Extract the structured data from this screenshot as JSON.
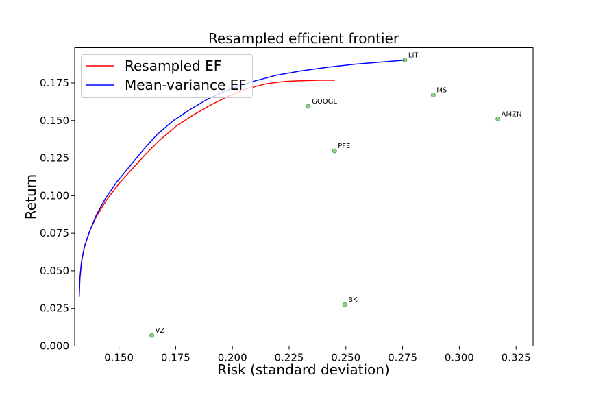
{
  "chart_data": {
    "type": "scatter",
    "title": "Resampled efficient frontier",
    "xlabel": "Risk (standard deviation)",
    "ylabel": "Return",
    "xlim": [
      0.1305,
      0.3325
    ],
    "ylim": [
      0.0,
      0.1985
    ],
    "x_ticks": [
      0.15,
      0.175,
      0.2,
      0.225,
      0.25,
      0.275,
      0.3,
      0.325
    ],
    "x_tick_labels": [
      "0.150",
      "0.175",
      "0.200",
      "0.225",
      "0.250",
      "0.275",
      "0.300",
      "0.325"
    ],
    "y_ticks": [
      0.0,
      0.025,
      0.05,
      0.075,
      0.1,
      0.125,
      0.15,
      0.175
    ],
    "y_tick_labels": [
      "0.000",
      "0.025",
      "0.050",
      "0.075",
      "0.100",
      "0.125",
      "0.150",
      "0.175"
    ],
    "grid": false,
    "legend_position": "top-left",
    "series": [
      {
        "name": "Resampled EF",
        "color": "#ff0000",
        "x": [
          0.1325,
          0.1328,
          0.1335,
          0.1348,
          0.137,
          0.14,
          0.1445,
          0.15,
          0.156,
          0.162,
          0.168,
          0.175,
          0.182,
          0.19,
          0.198,
          0.206,
          0.215,
          0.223,
          0.23,
          0.238,
          0.245
        ],
        "y": [
          0.033,
          0.045,
          0.056,
          0.066,
          0.076,
          0.086,
          0.097,
          0.108,
          0.118,
          0.128,
          0.137,
          0.146,
          0.153,
          0.16,
          0.166,
          0.171,
          0.1745,
          0.176,
          0.1765,
          0.1768,
          0.1768
        ]
      },
      {
        "name": "Mean-variance EF",
        "color": "#0000ff",
        "x": [
          0.1325,
          0.1328,
          0.1335,
          0.1348,
          0.137,
          0.14,
          0.144,
          0.149,
          0.155,
          0.161,
          0.167,
          0.174,
          0.182,
          0.19,
          0.199,
          0.209,
          0.219,
          0.23,
          0.242,
          0.254,
          0.266,
          0.276
        ],
        "y": [
          0.033,
          0.045,
          0.056,
          0.066,
          0.076,
          0.087,
          0.098,
          0.109,
          0.12,
          0.131,
          0.141,
          0.15,
          0.158,
          0.165,
          0.171,
          0.176,
          0.18,
          0.183,
          0.1855,
          0.1875,
          0.189,
          0.1902
        ]
      }
    ],
    "assets": {
      "color": "#2ca02c",
      "points": [
        {
          "label": "LIT",
          "x": 0.276,
          "y": 0.1902
        },
        {
          "label": "MS",
          "x": 0.2885,
          "y": 0.167
        },
        {
          "label": "AMZN",
          "x": 0.317,
          "y": 0.151
        },
        {
          "label": "GOOGL",
          "x": 0.2335,
          "y": 0.1595
        },
        {
          "label": "PFE",
          "x": 0.245,
          "y": 0.1298
        },
        {
          "label": "BK",
          "x": 0.2495,
          "y": 0.0275
        },
        {
          "label": "VZ",
          "x": 0.1645,
          "y": 0.007
        }
      ]
    }
  }
}
